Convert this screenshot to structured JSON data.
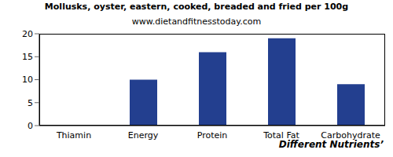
{
  "chart_data": {
    "type": "bar",
    "title": "Mollusks, oyster, eastern, cooked, breaded and fried per 100g",
    "subtitle": "www.dietandfitnesstoday.com",
    "x_label": "Different Nutrients’",
    "categories": [
      "Thiamin",
      "Energy",
      "Protein",
      "Total Fat",
      "Carbohydrate"
    ],
    "values": [
      0.1,
      10,
      16,
      19,
      9
    ],
    "color": "#233f8f",
    "ylim": [
      0,
      20
    ],
    "yticks": [
      0,
      5,
      10,
      15,
      20
    ],
    "grid": false
  }
}
